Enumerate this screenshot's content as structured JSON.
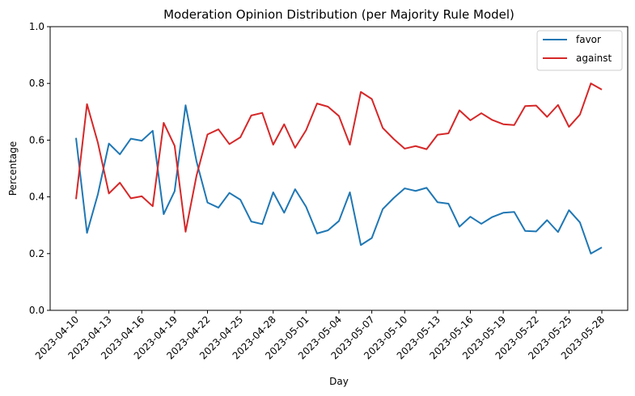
{
  "chart_data": {
    "type": "line",
    "title": "Moderation Opinion Distribution (per Majority Rule Model)",
    "xlabel": "Day",
    "ylabel": "Percentage",
    "ylim": [
      0.0,
      1.0
    ],
    "yticks": [
      "0.0",
      "0.2",
      "0.4",
      "0.6",
      "0.8",
      "1.0"
    ],
    "xticks": [
      "2023-04-10",
      "2023-04-13",
      "2023-04-16",
      "2023-04-19",
      "2023-04-22",
      "2023-04-25",
      "2023-04-28",
      "2023-05-01",
      "2023-05-04",
      "2023-05-07",
      "2023-05-10",
      "2023-05-13",
      "2023-05-16",
      "2023-05-19",
      "2023-05-22",
      "2023-05-25",
      "2023-05-28"
    ],
    "x": [
      "2023-04-10",
      "2023-04-11",
      "2023-04-12",
      "2023-04-13",
      "2023-04-14",
      "2023-04-15",
      "2023-04-16",
      "2023-04-17",
      "2023-04-18",
      "2023-04-19",
      "2023-04-20",
      "2023-04-21",
      "2023-04-22",
      "2023-04-23",
      "2023-04-24",
      "2023-04-25",
      "2023-04-26",
      "2023-04-27",
      "2023-04-28",
      "2023-04-29",
      "2023-04-30",
      "2023-05-01",
      "2023-05-02",
      "2023-05-03",
      "2023-05-04",
      "2023-05-05",
      "2023-05-06",
      "2023-05-07",
      "2023-05-08",
      "2023-05-09",
      "2023-05-10",
      "2023-05-11",
      "2023-05-12",
      "2023-05-13",
      "2023-05-14",
      "2023-05-15",
      "2023-05-16",
      "2023-05-17",
      "2023-05-18",
      "2023-05-19",
      "2023-05-20",
      "2023-05-21",
      "2023-05-22",
      "2023-05-23",
      "2023-05-24",
      "2023-05-25",
      "2023-05-26",
      "2023-05-27",
      "2023-05-28"
    ],
    "series": [
      {
        "name": "favor",
        "color": "#1f77b4",
        "values": [
          0.608,
          0.273,
          0.41,
          0.588,
          0.55,
          0.605,
          0.598,
          0.633,
          0.339,
          0.42,
          0.723,
          0.525,
          0.38,
          0.362,
          0.414,
          0.39,
          0.313,
          0.304,
          0.416,
          0.344,
          0.427,
          0.365,
          0.271,
          0.282,
          0.315,
          0.416,
          0.23,
          0.255,
          0.357,
          0.396,
          0.43,
          0.421,
          0.432,
          0.381,
          0.376,
          0.295,
          0.33,
          0.305,
          0.329,
          0.344,
          0.347,
          0.28,
          0.278,
          0.318,
          0.276,
          0.353,
          0.31,
          0.2,
          0.222
        ]
      },
      {
        "name": "against",
        "color": "#d62728",
        "values": [
          0.392,
          0.727,
          0.59,
          0.412,
          0.45,
          0.395,
          0.402,
          0.367,
          0.661,
          0.58,
          0.277,
          0.475,
          0.62,
          0.638,
          0.586,
          0.61,
          0.687,
          0.696,
          0.584,
          0.656,
          0.573,
          0.635,
          0.729,
          0.718,
          0.685,
          0.584,
          0.77,
          0.745,
          0.643,
          0.604,
          0.57,
          0.579,
          0.568,
          0.619,
          0.624,
          0.705,
          0.67,
          0.695,
          0.671,
          0.656,
          0.653,
          0.72,
          0.722,
          0.682,
          0.724,
          0.647,
          0.69,
          0.8,
          0.778
        ]
      }
    ],
    "legend_position": "top-right",
    "grid": false
  }
}
